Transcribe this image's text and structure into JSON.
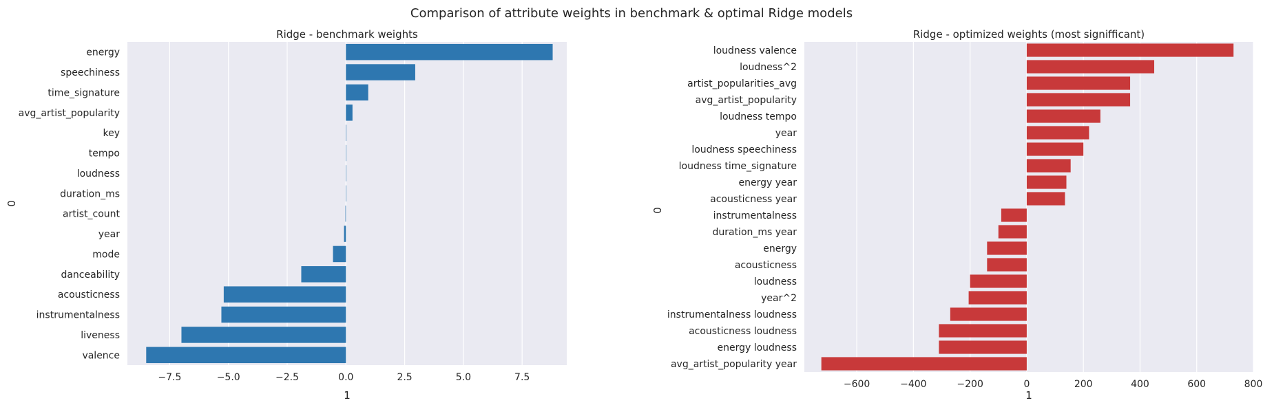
{
  "figure": {
    "title": "Comparison of attribute weights in benchmark & optimal Ridge models",
    "background": "#ffffff",
    "axes_facecolor": "#eaeaf2",
    "grid_color": "#ffffff"
  },
  "chart_data": [
    {
      "type": "bar",
      "orientation": "horizontal",
      "title": "Ridge - benchmark weights",
      "xlabel": "1",
      "ylabel": "0",
      "color": "#2e77b0",
      "grid": true,
      "xlim": [
        -9.3,
        9.4
      ],
      "xticks": [
        -7.5,
        -5.0,
        -2.5,
        0.0,
        2.5,
        5.0,
        7.5
      ],
      "xtick_labels": [
        "−7.5",
        "−5.0",
        "−2.5",
        "0.0",
        "2.5",
        "5.0",
        "7.5"
      ],
      "categories": [
        "energy",
        "speechiness",
        "time_signature",
        "avg_artist_popularity",
        "key",
        "tempo",
        "loudness",
        "duration_ms",
        "artist_count",
        "year",
        "mode",
        "danceability",
        "acousticness",
        "instrumentalness",
        "liveness",
        "valence"
      ],
      "values": [
        8.8,
        2.95,
        0.95,
        0.28,
        0.02,
        0.01,
        0.01,
        0.0,
        -0.02,
        -0.08,
        -0.55,
        -1.9,
        -5.2,
        -5.3,
        -7.0,
        -8.5
      ]
    },
    {
      "type": "bar",
      "orientation": "horizontal",
      "title": "Ridge - optimized weights (most signifficant)",
      "xlabel": "1",
      "ylabel": "0",
      "color": "#c8393a",
      "grid": true,
      "xlim": [
        -785,
        800
      ],
      "xticks": [
        -600,
        -400,
        -200,
        0,
        200,
        400,
        600,
        800
      ],
      "xtick_labels": [
        "−600",
        "−400",
        "−200",
        "0",
        "200",
        "400",
        "600",
        "800"
      ],
      "categories": [
        "loudness valence",
        "loudness^2",
        "artist_popularities_avg",
        "avg_artist_popularity",
        "loudness tempo",
        "year",
        "loudness speechiness",
        "loudness time_signature",
        "energy year",
        "acousticness year",
        "instrumentalness",
        "duration_ms year",
        "energy",
        "acousticness",
        "loudness",
        "year^2",
        "instrumentalness loudness",
        "acousticness loudness",
        "energy loudness",
        "avg_artist_popularity year"
      ],
      "values": [
        730,
        450,
        365,
        365,
        260,
        220,
        200,
        155,
        140,
        135,
        -90,
        -100,
        -140,
        -140,
        -200,
        -205,
        -270,
        -310,
        -310,
        -725
      ]
    }
  ]
}
